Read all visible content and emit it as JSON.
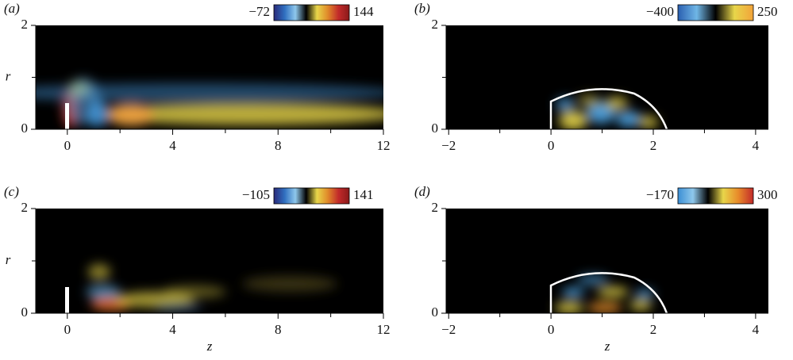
{
  "chart_data": [
    {
      "type": "heatmap",
      "panel_label": "(a)",
      "ylabel": "r",
      "colorbar": {
        "min": {
          "value": -72,
          "label": "−72"
        },
        "max": 144,
        "colors": [
          "#2a2a7a",
          "#2f6fc0",
          "#8fc8ec",
          "#000000",
          "#e8d64a",
          "#e08a2a",
          "#c22a2a",
          "#8a1a1a"
        ]
      },
      "xlim": [
        -1.2,
        12
      ],
      "ylim": [
        0,
        2
      ],
      "xticks": [
        0,
        4,
        8,
        12
      ],
      "xminorticks": [
        2,
        6,
        10
      ],
      "yticks": [
        0,
        2
      ],
      "yminorticks": [
        1
      ]
    },
    {
      "type": "heatmap",
      "panel_label": "(b)",
      "colorbar": {
        "min": {
          "value": -400,
          "label": "−400"
        },
        "max": 250,
        "colors": [
          "#2a5fb0",
          "#6fb6e6",
          "#000000",
          "#e8d64a",
          "#f2a33a"
        ]
      },
      "xlim": [
        -2.05,
        4.25
      ],
      "ylim": [
        0,
        2
      ],
      "xticks": [
        {
          "value": -2,
          "label": "−2"
        },
        0,
        2,
        4
      ],
      "xminorticks": [
        -1,
        1,
        3
      ],
      "yticks": [
        0,
        2
      ],
      "yminorticks": [
        1
      ]
    },
    {
      "type": "heatmap",
      "panel_label": "(c)",
      "xlabel": "z",
      "ylabel": "r",
      "colorbar": {
        "min": {
          "value": -105,
          "label": "−105"
        },
        "max": 141,
        "colors": [
          "#2a2a7a",
          "#2f6fc0",
          "#8fc8ec",
          "#000000",
          "#e8d64a",
          "#e08a2a",
          "#c22a2a",
          "#8a1a1a"
        ]
      },
      "xlim": [
        -1.2,
        12
      ],
      "ylim": [
        0,
        2
      ],
      "xticks": [
        0,
        4,
        8,
        12
      ],
      "xminorticks": [
        2,
        6,
        10
      ],
      "yticks": [
        0,
        2
      ],
      "yminorticks": [
        1
      ]
    },
    {
      "type": "heatmap",
      "panel_label": "(d)",
      "xlabel": "z",
      "colorbar": {
        "min": {
          "value": -170,
          "label": "−170"
        },
        "max": 300,
        "colors": [
          "#3b8ed4",
          "#8fc8ec",
          "#000000",
          "#e8d64a",
          "#e88a2a",
          "#c22a2a"
        ]
      },
      "xlim": [
        -2.05,
        4.25
      ],
      "ylim": [
        0,
        2
      ],
      "xticks": [
        {
          "value": -2,
          "label": "−2"
        },
        0,
        2,
        4
      ],
      "xminorticks": [
        -1,
        1,
        3
      ],
      "yticks": [
        0,
        2
      ],
      "yminorticks": [
        1
      ]
    }
  ]
}
